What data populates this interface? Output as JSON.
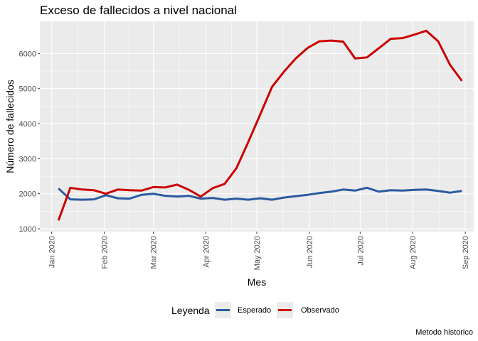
{
  "chart_data": {
    "type": "line",
    "title": "Exceso de fallecidos a nivel nacional",
    "xlabel": "Mes",
    "ylabel": "Número de fallecidos",
    "caption": "Metodo historico",
    "legend": {
      "title": "Leyenda",
      "position": "bottom"
    },
    "grid": true,
    "xlim": [
      "2019-12-25",
      "2020-09-06"
    ],
    "ylim": [
      920,
      6920
    ],
    "y_ticks": [
      1000,
      2000,
      3000,
      4000,
      5000,
      6000
    ],
    "x_ticks": [
      {
        "date": "2020-01-01",
        "label": "Jan 2020"
      },
      {
        "date": "2020-02-01",
        "label": "Feb 2020"
      },
      {
        "date": "2020-03-01",
        "label": "Mar 2020"
      },
      {
        "date": "2020-04-01",
        "label": "Apr 2020"
      },
      {
        "date": "2020-05-01",
        "label": "May 2020"
      },
      {
        "date": "2020-06-01",
        "label": "Jun 2020"
      },
      {
        "date": "2020-07-01",
        "label": "Jul 2020"
      },
      {
        "date": "2020-08-01",
        "label": "Aug 2020"
      },
      {
        "date": "2020-09-01",
        "label": "Sep 2020"
      }
    ],
    "x": [
      "2020-01-05",
      "2020-01-12",
      "2020-01-19",
      "2020-01-26",
      "2020-02-02",
      "2020-02-09",
      "2020-02-16",
      "2020-02-23",
      "2020-03-01",
      "2020-03-08",
      "2020-03-15",
      "2020-03-22",
      "2020-03-29",
      "2020-04-05",
      "2020-04-12",
      "2020-04-19",
      "2020-04-26",
      "2020-05-03",
      "2020-05-10",
      "2020-05-17",
      "2020-05-24",
      "2020-05-31",
      "2020-06-07",
      "2020-06-14",
      "2020-06-21",
      "2020-06-28",
      "2020-07-05",
      "2020-07-12",
      "2020-07-19",
      "2020-07-26",
      "2020-08-02",
      "2020-08-09",
      "2020-08-16",
      "2020-08-23",
      "2020-08-30"
    ],
    "series": [
      {
        "name": "Esperado",
        "color": "#2c5aa0",
        "values": [
          2150,
          1840,
          1830,
          1840,
          1960,
          1870,
          1860,
          1970,
          2000,
          1940,
          1920,
          1940,
          1860,
          1880,
          1830,
          1860,
          1830,
          1870,
          1830,
          1890,
          1930,
          1970,
          2020,
          2060,
          2120,
          2090,
          2170,
          2060,
          2100,
          2090,
          2110,
          2120,
          2080,
          2030,
          2080
        ]
      },
      {
        "name": "Observado",
        "color": "#cc0000",
        "values": [
          1240,
          2170,
          2120,
          2100,
          2000,
          2120,
          2100,
          2090,
          2190,
          2180,
          2260,
          2110,
          1920,
          2160,
          2280,
          2730,
          3480,
          4260,
          5050,
          5480,
          5860,
          6160,
          6350,
          6370,
          6340,
          5860,
          5890,
          6150,
          6420,
          6440,
          6540,
          6650,
          6350,
          5680,
          5220
        ]
      }
    ]
  }
}
